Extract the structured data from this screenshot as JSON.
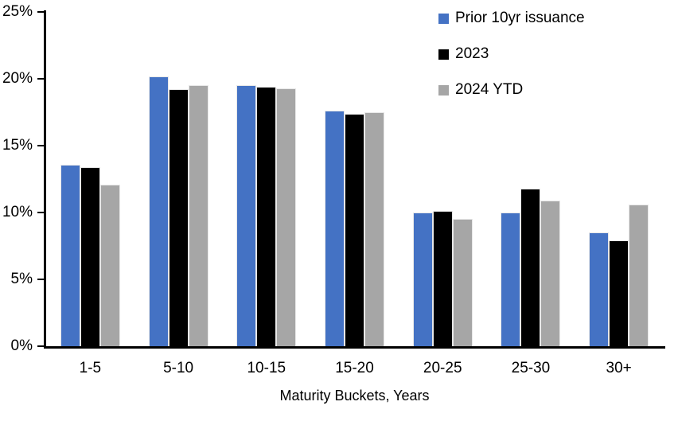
{
  "chart_data": {
    "type": "bar",
    "title": "",
    "categories": [
      "1-5",
      "5-10",
      "10-15",
      "15-20",
      "20-25",
      "25-30",
      "30+"
    ],
    "series": [
      {
        "name": "Prior 10yr issuance",
        "color": "#4472C4",
        "values": [
          13.6,
          20.2,
          19.5,
          17.6,
          10.0,
          10.0,
          8.5
        ]
      },
      {
        "name": "2023",
        "color": "#000000",
        "values": [
          13.4,
          19.2,
          19.4,
          17.4,
          10.1,
          11.8,
          7.9
        ]
      },
      {
        "name": "2024 YTD",
        "color": "#A6A6A6",
        "values": [
          12.1,
          19.5,
          19.3,
          17.5,
          9.5,
          10.9,
          10.6
        ]
      }
    ],
    "xlabel": "Maturity Buckets, Years",
    "ylabel": "",
    "ylim": [
      0,
      25
    ],
    "yticks": [
      "0%",
      "5%",
      "10%",
      "15%",
      "20%",
      "25%"
    ],
    "ytick_values": [
      0,
      5,
      10,
      15,
      20,
      25
    ],
    "legend_position": "top-right",
    "grid": false,
    "axis_color": "#000000",
    "background_color": "#FFFFFF"
  }
}
